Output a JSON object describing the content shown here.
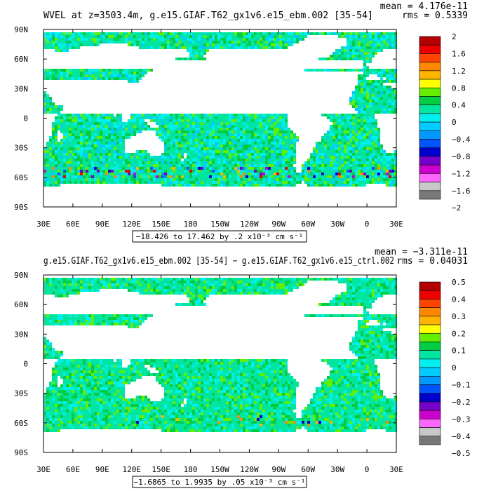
{
  "chart_data": [
    {
      "type": "heatmap",
      "title": "WVEL at z=3503.4m, g.e15.GIAF.T62_gx1v6.e15_ebm.002 [35-54]",
      "stats": {
        "mean": "mean = 4.176e-11",
        "rms": "rms = 0.5339"
      },
      "x_ticks": [
        "30E",
        "60E",
        "90E",
        "120E",
        "150E",
        "180",
        "150W",
        "120W",
        "90W",
        "60W",
        "30W",
        "0",
        "30E"
      ],
      "y_ticks": [
        "90N",
        "60N",
        "30N",
        "0",
        "30S",
        "60S",
        "90S"
      ],
      "range_label": "−18.426 to 17.462 by .2 x10⁻³ cm s⁻¹",
      "colorbar": {
        "labels": [
          "2",
          "1.6",
          "1.2",
          "0.8",
          "0.4",
          "0",
          "−0.4",
          "−0.8",
          "−1.2",
          "−1.6",
          "−2"
        ],
        "colors": [
          "#b40000",
          "#ee0000",
          "#ff4400",
          "#ff8800",
          "#ffb400",
          "#ffff00",
          "#66ee00",
          "#00cc44",
          "#00e6a0",
          "#00f0f0",
          "#00ccff",
          "#0099ff",
          "#0055ff",
          "#0000cc",
          "#7700cc",
          "#cc00cc",
          "#ff66ff",
          "#c8c8c8",
          "#787878"
        ]
      }
    },
    {
      "type": "heatmap",
      "title": "g.e15.GIAF.T62_gx1v6.e15_ebm.002 [35-54] − g.e15.GIAF.T62_gx1v6.e15_ctrl.002",
      "stats": {
        "mean": "mean = −3.311e-11",
        "rms": "rms = 0.04031"
      },
      "x_ticks": [
        "30E",
        "60E",
        "90E",
        "120E",
        "150E",
        "180",
        "150W",
        "120W",
        "90W",
        "60W",
        "30W",
        "0",
        "30E"
      ],
      "y_ticks": [
        "90N",
        "60N",
        "30N",
        "0",
        "30S",
        "60S",
        "90S"
      ],
      "range_label": "−1.6865 to 1.9935 by .05 x10⁻³ cm s⁻¹",
      "colorbar": {
        "labels": [
          "0.5",
          "0.4",
          "0.3",
          "0.2",
          "0.1",
          "0",
          "−0.1",
          "−0.2",
          "−0.3",
          "−0.4",
          "−0.5"
        ],
        "colors": [
          "#b40000",
          "#ee0000",
          "#ff4400",
          "#ff8800",
          "#ffb400",
          "#ffff00",
          "#66ee00",
          "#00cc44",
          "#00e6a0",
          "#00f0f0",
          "#00ccff",
          "#0099ff",
          "#0055ff",
          "#0000cc",
          "#7700cc",
          "#cc00cc",
          "#ff66ff",
          "#c8c8c8",
          "#787878"
        ]
      }
    }
  ]
}
